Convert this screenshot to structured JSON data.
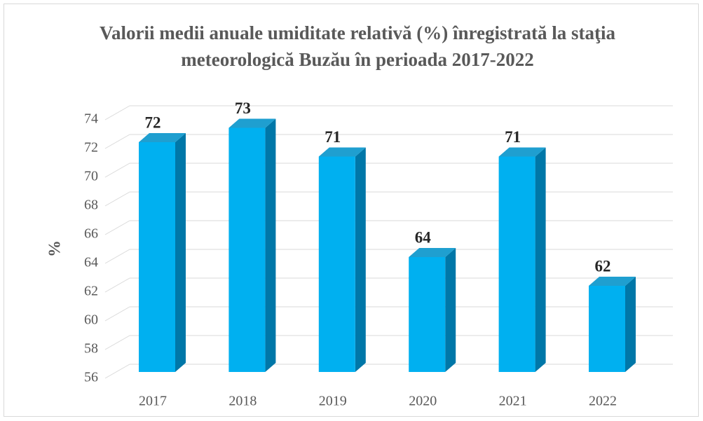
{
  "chart_data": {
    "type": "bar3d",
    "title": "Valorii medii anuale umiditate relativă (%) înregistrată la staţia meteorologică Buzău în perioada 2017-2022",
    "y_label": "%",
    "categories": [
      "2017",
      "2018",
      "2019",
      "2020",
      "2021",
      "2022"
    ],
    "values": [
      72,
      73,
      71,
      64,
      71,
      62
    ],
    "color": "#00b0f0",
    "ylim": [
      56,
      74
    ],
    "yticks": [
      56,
      58,
      60,
      62,
      64,
      66,
      68,
      70,
      72,
      74
    ],
    "grid": true
  }
}
